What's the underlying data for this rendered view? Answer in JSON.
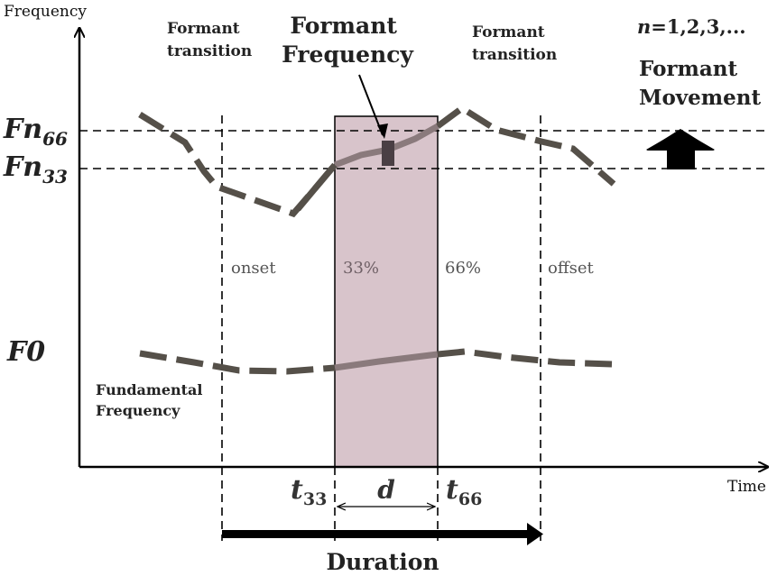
{
  "axes": {
    "y_label": "Frequency",
    "x_label": "Time"
  },
  "labels": {
    "formant_transition_left": [
      "Formant",
      "transition"
    ],
    "formant_transition_right": [
      "Formant",
      "transition"
    ],
    "formant_frequency": [
      "Formant",
      "Frequency"
    ],
    "n_values": "n=1,2,3,...",
    "n_italic": "n",
    "n_rest": "=1,2,3,...",
    "formant_movement": [
      "Formant",
      "Movement"
    ],
    "fn66": "Fn",
    "fn66_sub": "66",
    "fn33": "Fn",
    "fn33_sub": "33",
    "f0": "F0",
    "fundamental_frequency": [
      "Fundamental",
      "Frequency"
    ],
    "onset": "onset",
    "p33": "33%",
    "p66": "66%",
    "offset": "offset",
    "t33": "t",
    "t33_sub": "33",
    "t66": "t",
    "t66_sub": "66",
    "d": "d",
    "duration": "Duration"
  },
  "colors": {
    "curve": "#555049",
    "highlight_curve": "#8a7a7c",
    "shade": "#d8c4cb",
    "marker": "#4a3f44",
    "axis": "#000000"
  },
  "icons": [
    "up-arrow-icon",
    "right-arrow-icon"
  ]
}
